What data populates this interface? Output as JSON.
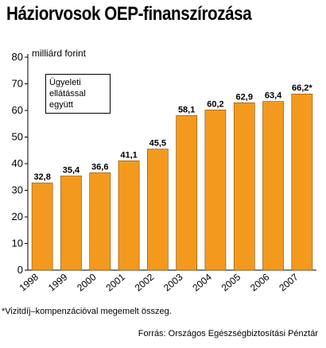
{
  "chart_data": {
    "type": "bar",
    "title": "Háziorvosok OEP-finanszírozása",
    "ylabel": "milliárd forint",
    "categories": [
      "1998",
      "1999",
      "2000",
      "2001",
      "2002",
      "2003",
      "2004",
      "2005",
      "2006",
      "2007"
    ],
    "values": [
      32.8,
      35.4,
      36.6,
      41.1,
      45.5,
      58.1,
      60.2,
      62.9,
      63.4,
      66.2
    ],
    "value_labels": [
      "32,8",
      "35,4",
      "36,6",
      "41,1",
      "45,5",
      "58,1",
      "60,2",
      "62,9",
      "63,4",
      "66,2*"
    ],
    "ylim": [
      0,
      80
    ],
    "yticks": [
      0,
      10,
      20,
      30,
      40,
      50,
      60,
      70,
      80
    ],
    "grid": false,
    "annotation": "Ügyeleti ellátással együtt",
    "footnote": "*Vizitdíj–kompenzációval megemelt összeg.",
    "source": "Forrás: Országos Egészségbiztosítási Pénztár",
    "colors": {
      "bar": "#f39a1e",
      "bar_edge": "#8a4f00",
      "axis": "#000000"
    }
  }
}
